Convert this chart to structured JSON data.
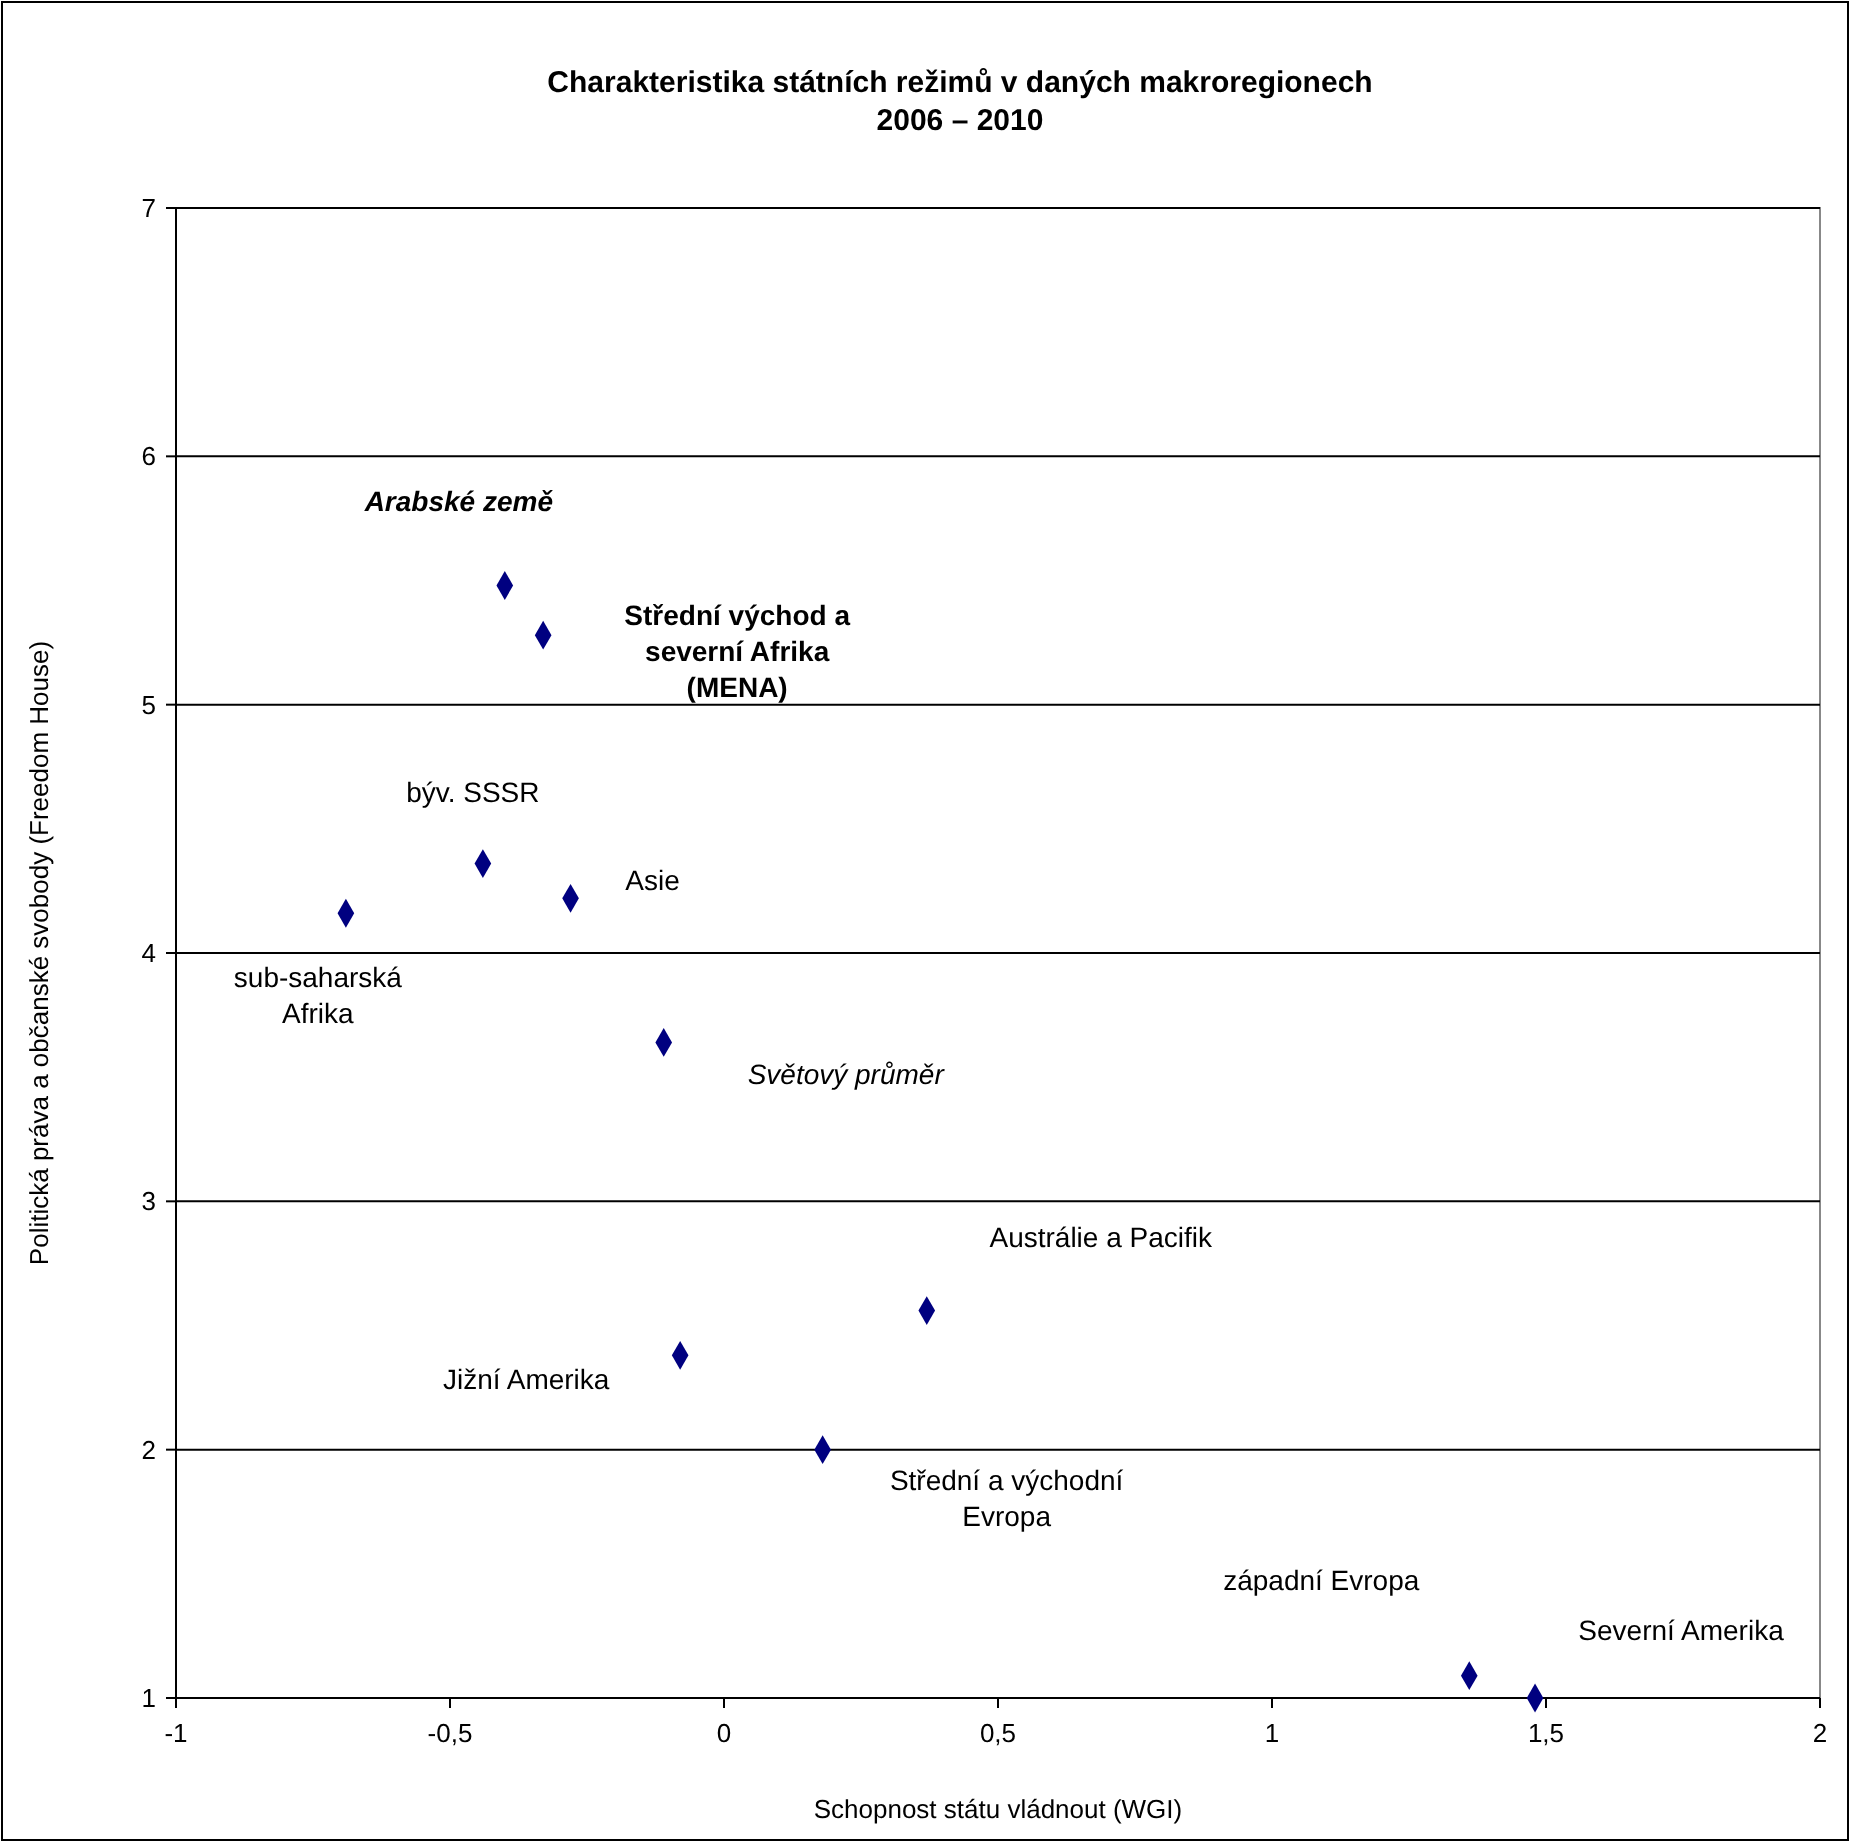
{
  "chart_data": {
    "type": "scatter",
    "title": "Charakteristika státních režimů v daných makroregionech",
    "subtitle": "2006 – 2010",
    "xlabel": "Schopnost státu vládnout (WGI)",
    "ylabel": "Politická práva a občanské svobody (Freedom House)",
    "xlim": [
      -1,
      2
    ],
    "xticks": [
      -1,
      {
        "value": -0.5,
        "label": "-0,5"
      },
      0,
      {
        "value": 0.5,
        "label": "0,5"
      },
      1,
      {
        "value": 1.5,
        "label": "1,5"
      },
      2
    ],
    "ylim": [
      1,
      7
    ],
    "yticks": [
      1,
      2,
      3,
      4,
      5,
      6,
      7
    ],
    "grid": "y",
    "marker": "diamond",
    "series": [
      {
        "name": "Arabské země",
        "color": "#000080",
        "x": [
          -0.4
        ],
        "values": [
          5.48
        ]
      },
      {
        "name": "Střední východ a severní Afrika (MENA)",
        "color": "#000080",
        "x": [
          -0.33
        ],
        "values": [
          5.28
        ]
      },
      {
        "name": "býv. SSSR",
        "color": "#000080",
        "x": [
          -0.44
        ],
        "values": [
          4.36
        ]
      },
      {
        "name": "Asie",
        "color": "#000080",
        "x": [
          -0.28
        ],
        "values": [
          4.22
        ]
      },
      {
        "name": "sub-saharská Afrika",
        "color": "#000080",
        "x": [
          -0.69
        ],
        "values": [
          4.16
        ]
      },
      {
        "name": "Světový průměr",
        "color": "#000080",
        "x": [
          -0.11
        ],
        "values": [
          3.64
        ]
      },
      {
        "name": "Austrálie a Pacifik",
        "color": "#000080",
        "x": [
          0.37
        ],
        "values": [
          2.56
        ]
      },
      {
        "name": "Jižní Amerika",
        "color": "#000080",
        "x": [
          -0.08
        ],
        "values": [
          2.38
        ]
      },
      {
        "name": "Střední a východní Evropa",
        "color": "#000080",
        "x": [
          0.18
        ],
        "values": [
          2.0
        ]
      },
      {
        "name": "západní Evropa",
        "color": "#000080",
        "x": [
          1.36
        ],
        "values": [
          1.09
        ]
      },
      {
        "name": "Severní Amerika",
        "color": "#000080",
        "x": [
          1.48
        ],
        "values": [
          1.0
        ]
      }
    ]
  }
}
